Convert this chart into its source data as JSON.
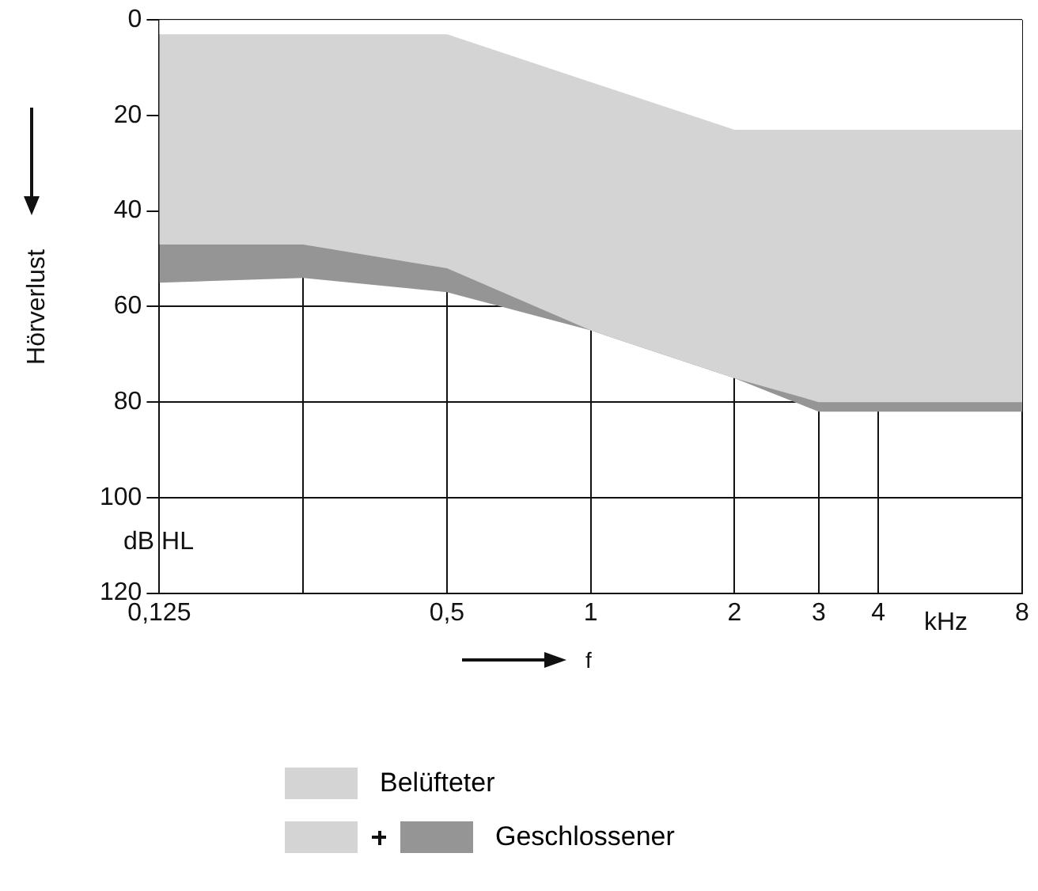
{
  "chart_data": {
    "type": "area",
    "ylabel": "Hörverlust",
    "xlabel": "f",
    "log": "x",
    "xlim": [
      0.125,
      8
    ],
    "xticks": [
      {
        "value": 0.125,
        "label": "0,125"
      },
      {
        "value": 0.25,
        "label": null
      },
      {
        "value": 0.5,
        "label": "0,5"
      },
      1,
      2,
      3,
      4,
      8
    ],
    "ylim": [
      120,
      0
    ],
    "yticks": [
      0,
      20,
      40,
      60,
      80,
      100,
      120
    ],
    "grid": true,
    "legend": "bottom",
    "annotations": [
      "kHz",
      "dB HL"
    ],
    "series": [
      {
        "name": "Geschlossener",
        "color": "#959595",
        "x": [
          0.125,
          0.25,
          0.5,
          1,
          2,
          3,
          4,
          8
        ],
        "values": [
          55,
          54,
          57,
          65,
          75,
          82,
          82,
          82
        ]
      },
      {
        "name": "Belüfteter",
        "color": "#d4d4d4",
        "x": [
          0.125,
          0.25,
          0.5,
          1,
          2,
          3,
          4,
          8
        ],
        "values": [
          47,
          47,
          52,
          65,
          75,
          80,
          80,
          80
        ]
      },
      {
        "color": "#ffffff",
        "x": [
          0.125,
          0.25,
          0.5,
          1,
          2,
          3,
          4,
          8
        ],
        "values": [
          3,
          3,
          3,
          13,
          23,
          23,
          23,
          23
        ]
      }
    ]
  }
}
